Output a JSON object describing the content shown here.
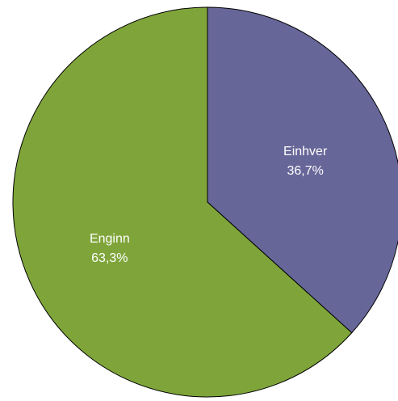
{
  "chart_data": {
    "type": "pie",
    "title": "",
    "slices": [
      {
        "label": "Einhver",
        "value": 36.7,
        "value_label": "36,7%",
        "color": "#676699"
      },
      {
        "label": "Enginn",
        "value": 63.3,
        "value_label": "63,3%",
        "color": "#7fa53a"
      }
    ],
    "start": "12 o'clock",
    "direction": "clockwise",
    "legend": "none",
    "outline_color": "#000000"
  }
}
